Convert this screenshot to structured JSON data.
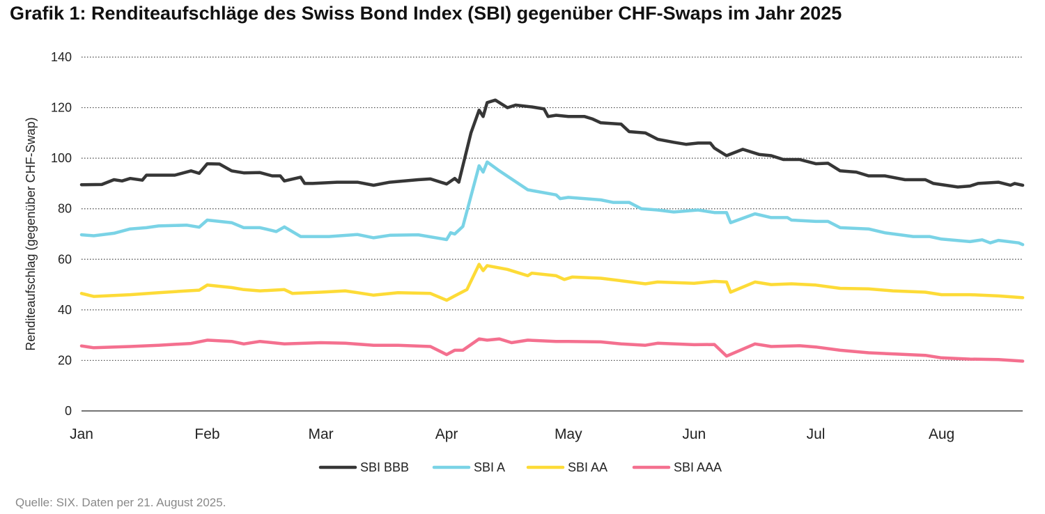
{
  "title": "Grafik 1: Renditeaufschläge des Swiss Bond Index (SBI) gegenüber CHF-Swaps im Jahr 2025",
  "source": "Quelle: SIX. Daten per 21. August 2025.",
  "chart_data": {
    "type": "line",
    "title": "Grafik 1: Renditeaufschläge des Swiss Bond Index (SBI) gegenüber CHF-Swaps im Jahr 2025",
    "xlabel": "",
    "ylabel": "Renditeaufschlag (gegenüber CHF-Swap)",
    "ylim": [
      0,
      140
    ],
    "yticks": [
      "0",
      "20",
      "40",
      "60",
      "80",
      "100",
      "120",
      "140"
    ],
    "xticks": [
      {
        "label": "Jan",
        "date": "2025-01-01"
      },
      {
        "label": "Feb",
        "date": "2025-02-01"
      },
      {
        "label": "Mar",
        "date": "2025-03-01"
      },
      {
        "label": "Apr",
        "date": "2025-04-01"
      },
      {
        "label": "May",
        "date": "2025-05-01"
      },
      {
        "label": "Jun",
        "date": "2025-06-01"
      },
      {
        "label": "Jul",
        "date": "2025-07-01"
      },
      {
        "label": "Aug",
        "date": "2025-08-01"
      }
    ],
    "xlim": [
      "2025-01-01",
      "2025-08-21"
    ],
    "grid": "horizontal dotted",
    "legend": "bottom",
    "series": [
      {
        "name": "SBI BBB",
        "color": "#363636",
        "points": [
          [
            "01-01",
            89.5
          ],
          [
            "01-06",
            89.6
          ],
          [
            "01-09",
            91.5
          ],
          [
            "01-11",
            91
          ],
          [
            "01-13",
            92
          ],
          [
            "01-16",
            91.3
          ],
          [
            "01-17",
            93.3
          ],
          [
            "01-20",
            93.3
          ],
          [
            "01-24",
            93.3
          ],
          [
            "01-28",
            95
          ],
          [
            "01-30",
            94
          ],
          [
            "02-01",
            97.8
          ],
          [
            "02-04",
            97.7
          ],
          [
            "02-07",
            95
          ],
          [
            "02-10",
            94.2
          ],
          [
            "02-14",
            94.3
          ],
          [
            "02-17",
            93
          ],
          [
            "02-19",
            93
          ],
          [
            "02-20",
            91
          ],
          [
            "02-24",
            92.5
          ],
          [
            "02-25",
            90
          ],
          [
            "02-27",
            90
          ],
          [
            "03-05",
            90.5
          ],
          [
            "03-10",
            90.5
          ],
          [
            "03-14",
            89.3
          ],
          [
            "03-18",
            90.5
          ],
          [
            "03-25",
            91.5
          ],
          [
            "03-28",
            91.8
          ],
          [
            "04-01",
            89.8
          ],
          [
            "04-03",
            92
          ],
          [
            "04-04",
            90.5
          ],
          [
            "04-07",
            110
          ],
          [
            "04-09",
            119
          ],
          [
            "04-10",
            116.5
          ],
          [
            "04-11",
            122
          ],
          [
            "04-13",
            123
          ],
          [
            "04-16",
            120
          ],
          [
            "04-18",
            121
          ],
          [
            "04-22",
            120.3
          ],
          [
            "04-25",
            119.5
          ],
          [
            "04-26",
            116.5
          ],
          [
            "04-28",
            117
          ],
          [
            "05-01",
            116.5
          ],
          [
            "05-05",
            116.5
          ],
          [
            "05-07",
            115.5
          ],
          [
            "05-09",
            114
          ],
          [
            "05-14",
            113.5
          ],
          [
            "05-16",
            110.5
          ],
          [
            "05-20",
            110
          ],
          [
            "05-23",
            107.5
          ],
          [
            "05-27",
            106.3
          ],
          [
            "05-30",
            105.5
          ],
          [
            "06-02",
            106
          ],
          [
            "06-05",
            106
          ],
          [
            "06-06",
            104
          ],
          [
            "06-09",
            101
          ],
          [
            "06-13",
            103.5
          ],
          [
            "06-17",
            101.5
          ],
          [
            "06-20",
            101
          ],
          [
            "06-23",
            99.5
          ],
          [
            "06-27",
            99.5
          ],
          [
            "07-01",
            97.8
          ],
          [
            "07-04",
            98
          ],
          [
            "07-07",
            95
          ],
          [
            "07-11",
            94.5
          ],
          [
            "07-14",
            93
          ],
          [
            "07-18",
            93
          ],
          [
            "07-23",
            91.5
          ],
          [
            "07-28",
            91.5
          ],
          [
            "07-30",
            90
          ],
          [
            "08-05",
            88.6
          ],
          [
            "08-08",
            89
          ],
          [
            "08-10",
            90
          ],
          [
            "08-15",
            90.5
          ],
          [
            "08-18",
            89.3
          ],
          [
            "08-19",
            90
          ],
          [
            "08-21",
            89.3
          ]
        ]
      },
      {
        "name": "SBI A",
        "color": "#7ad3e6",
        "points": [
          [
            "01-01",
            69.7
          ],
          [
            "01-04",
            69.3
          ],
          [
            "01-09",
            70.3
          ],
          [
            "01-13",
            72
          ],
          [
            "01-17",
            72.5
          ],
          [
            "01-20",
            73.2
          ],
          [
            "01-27",
            73.5
          ],
          [
            "01-30",
            72.7
          ],
          [
            "02-01",
            75.5
          ],
          [
            "02-07",
            74.5
          ],
          [
            "02-10",
            72.5
          ],
          [
            "02-14",
            72.5
          ],
          [
            "02-18",
            71
          ],
          [
            "02-20",
            72.8
          ],
          [
            "02-24",
            69
          ],
          [
            "03-03",
            69
          ],
          [
            "03-10",
            69.8
          ],
          [
            "03-14",
            68.5
          ],
          [
            "03-18",
            69.5
          ],
          [
            "03-25",
            69.7
          ],
          [
            "04-01",
            67.8
          ],
          [
            "04-02",
            70.5
          ],
          [
            "04-03",
            70
          ],
          [
            "04-05",
            73
          ],
          [
            "04-09",
            97
          ],
          [
            "04-10",
            94.5
          ],
          [
            "04-11",
            98.5
          ],
          [
            "04-14",
            95
          ],
          [
            "04-21",
            87.5
          ],
          [
            "04-28",
            85.5
          ],
          [
            "04-29",
            84
          ],
          [
            "05-01",
            84.5
          ],
          [
            "05-09",
            83.5
          ],
          [
            "05-12",
            82.5
          ],
          [
            "05-16",
            82.5
          ],
          [
            "05-19",
            80
          ],
          [
            "05-23",
            79.5
          ],
          [
            "05-27",
            78.7
          ],
          [
            "06-02",
            79.5
          ],
          [
            "06-06",
            78.5
          ],
          [
            "06-09",
            78.5
          ],
          [
            "06-10",
            74.5
          ],
          [
            "06-16",
            78
          ],
          [
            "06-20",
            76.5
          ],
          [
            "06-24",
            76.5
          ],
          [
            "06-25",
            75.5
          ],
          [
            "07-01",
            75
          ],
          [
            "07-04",
            75
          ],
          [
            "07-07",
            72.5
          ],
          [
            "07-14",
            72
          ],
          [
            "07-18",
            70.5
          ],
          [
            "07-25",
            69
          ],
          [
            "07-29",
            69
          ],
          [
            "08-01",
            68
          ],
          [
            "08-08",
            67
          ],
          [
            "08-11",
            67.7
          ],
          [
            "08-13",
            66.5
          ],
          [
            "08-15",
            67.5
          ],
          [
            "08-20",
            66.5
          ],
          [
            "08-21",
            65.8
          ]
        ]
      },
      {
        "name": "SBI AA",
        "color": "#fddb37",
        "points": [
          [
            "01-01",
            46.5
          ],
          [
            "01-04",
            45.3
          ],
          [
            "01-13",
            46
          ],
          [
            "01-20",
            46.8
          ],
          [
            "01-27",
            47.5
          ],
          [
            "01-30",
            47.8
          ],
          [
            "02-01",
            49.8
          ],
          [
            "02-07",
            48.8
          ],
          [
            "02-10",
            48
          ],
          [
            "02-14",
            47.5
          ],
          [
            "02-20",
            48
          ],
          [
            "02-22",
            46.5
          ],
          [
            "03-01",
            47
          ],
          [
            "03-07",
            47.5
          ],
          [
            "03-10",
            46.8
          ],
          [
            "03-14",
            45.8
          ],
          [
            "03-20",
            46.8
          ],
          [
            "03-28",
            46.5
          ],
          [
            "04-01",
            43.8
          ],
          [
            "04-03",
            45.5
          ],
          [
            "04-06",
            48
          ],
          [
            "04-09",
            58
          ],
          [
            "04-10",
            55.5
          ],
          [
            "04-11",
            57.5
          ],
          [
            "04-16",
            56
          ],
          [
            "04-21",
            53.5
          ],
          [
            "04-22",
            54.5
          ],
          [
            "04-28",
            53.5
          ],
          [
            "04-30",
            52
          ],
          [
            "05-02",
            53
          ],
          [
            "05-09",
            52.5
          ],
          [
            "05-14",
            51.5
          ],
          [
            "05-20",
            50.3
          ],
          [
            "05-23",
            51
          ],
          [
            "06-01",
            50.5
          ],
          [
            "06-06",
            51.3
          ],
          [
            "06-09",
            51
          ],
          [
            "06-10",
            47
          ],
          [
            "06-16",
            51
          ],
          [
            "06-20",
            50
          ],
          [
            "06-25",
            50.3
          ],
          [
            "07-01",
            49.8
          ],
          [
            "07-07",
            48.5
          ],
          [
            "07-14",
            48.3
          ],
          [
            "07-20",
            47.5
          ],
          [
            "07-28",
            47
          ],
          [
            "08-01",
            46
          ],
          [
            "08-08",
            46
          ],
          [
            "08-15",
            45.5
          ],
          [
            "08-21",
            44.8
          ]
        ]
      },
      {
        "name": "SBI AAA",
        "color": "#f4708f",
        "points": [
          [
            "01-01",
            25.7
          ],
          [
            "01-04",
            25
          ],
          [
            "01-13",
            25.5
          ],
          [
            "01-20",
            26
          ],
          [
            "01-28",
            26.7
          ],
          [
            "02-01",
            28
          ],
          [
            "02-07",
            27.5
          ],
          [
            "02-10",
            26.5
          ],
          [
            "02-14",
            27.5
          ],
          [
            "02-20",
            26.5
          ],
          [
            "03-01",
            27
          ],
          [
            "03-07",
            26.8
          ],
          [
            "03-14",
            26
          ],
          [
            "03-20",
            26
          ],
          [
            "03-28",
            25.5
          ],
          [
            "04-01",
            22.3
          ],
          [
            "04-03",
            24
          ],
          [
            "04-05",
            24
          ],
          [
            "04-09",
            28.5
          ],
          [
            "04-11",
            28
          ],
          [
            "04-14",
            28.5
          ],
          [
            "04-17",
            27
          ],
          [
            "04-21",
            28
          ],
          [
            "04-28",
            27.5
          ],
          [
            "05-01",
            27.5
          ],
          [
            "05-09",
            27.3
          ],
          [
            "05-14",
            26.5
          ],
          [
            "05-20",
            26
          ],
          [
            "05-23",
            26.8
          ],
          [
            "06-01",
            26.2
          ],
          [
            "06-06",
            26.3
          ],
          [
            "06-09",
            21.7
          ],
          [
            "06-16",
            26.5
          ],
          [
            "06-20",
            25.5
          ],
          [
            "06-27",
            25.8
          ],
          [
            "07-01",
            25.3
          ],
          [
            "07-07",
            24
          ],
          [
            "07-14",
            23
          ],
          [
            "07-21",
            22.5
          ],
          [
            "07-28",
            22
          ],
          [
            "08-01",
            21
          ],
          [
            "08-08",
            20.5
          ],
          [
            "08-15",
            20.3
          ],
          [
            "08-21",
            19.7
          ]
        ]
      }
    ]
  }
}
